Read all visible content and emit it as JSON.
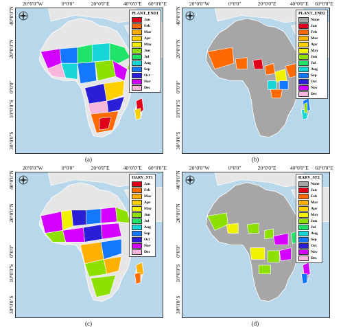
{
  "axis_ticks": {
    "top": [
      "20°0'0\"W",
      "0°0'0\"",
      "20°0'0\"E",
      "40°0'0\"E",
      "60°0'0\"E"
    ],
    "left": [
      "40°0'0\"N",
      "20°0'0\"N",
      "0°0'0\"",
      "10°0'0\"S",
      "30°0'0\"S"
    ]
  },
  "colors": {
    "ocean": "#b9d7ea",
    "land": "#e6e6e6",
    "border": "#ffffff",
    "none": "#a6a6a6",
    "Jan": "#e0001b",
    "Feb": "#ff6a00",
    "Mar": "#ffb000",
    "Apr": "#ffd000",
    "May": "#f2f200",
    "Jun": "#8de000",
    "Jul": "#22e36a",
    "Aug": "#19d6d6",
    "Sep": "#1478ff",
    "Oct": "#2a1fd6",
    "Nov": "#d400ff",
    "Dec": "#f7b6dc"
  },
  "panels": [
    {
      "caption": "(a)",
      "legend_title": "PLANT_END1",
      "legend": [
        "Jan",
        "Feb",
        "Mar",
        "Apr",
        "May",
        "Jun",
        "Jul",
        "Aug",
        "Sep",
        "Oct",
        "Nov",
        "Dec"
      ]
    },
    {
      "caption": "(b)",
      "legend_title": "PLANT_END2",
      "legend": [
        "None",
        "Jan",
        "Feb",
        "Mar",
        "Apr",
        "May",
        "Jun",
        "Jul",
        "Aug",
        "Sep",
        "Oct",
        "Nov",
        "Dec"
      ]
    },
    {
      "caption": "(c)",
      "legend_title": "HARV_ST1",
      "legend": [
        "Jan",
        "Feb",
        "Mar",
        "Apr",
        "May",
        "Jun",
        "Jul",
        "Aug",
        "Sep",
        "Oct",
        "Nov",
        "Dec"
      ]
    },
    {
      "caption": "(d)",
      "legend_title": "HARV_ST2",
      "legend": [
        "None",
        "Jan",
        "Feb",
        "Mar",
        "Apr",
        "May",
        "Jun",
        "Jul",
        "Aug",
        "Sep",
        "Oct",
        "Nov",
        "Dec"
      ]
    }
  ]
}
